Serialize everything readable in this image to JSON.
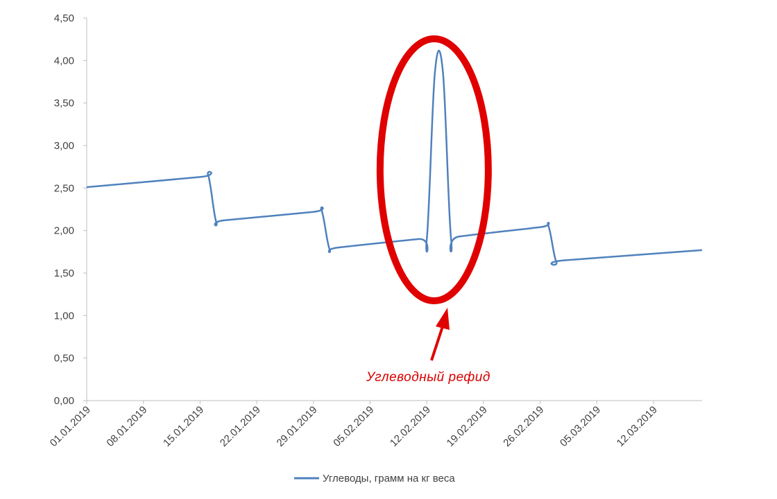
{
  "chart_data": {
    "type": "line",
    "title": "",
    "xlabel": "",
    "ylabel": "",
    "ylim": [
      0,
      4.5
    ],
    "yticks": [
      "0,00",
      "0,50",
      "1,00",
      "1,50",
      "2,00",
      "2,50",
      "3,00",
      "3,50",
      "4,00",
      "4,50"
    ],
    "xlim": [
      "2019-01-01",
      "2019-03-18"
    ],
    "xticks": [
      "01.01.2019",
      "08.01.2019",
      "15.01.2019",
      "22.01.2019",
      "29.01.2019",
      "05.02.2019",
      "12.02.2019",
      "19.02.2019",
      "26.02.2019",
      "05.03.2019",
      "12.03.2019"
    ],
    "grid": false,
    "legend_position": "bottom",
    "line_color": "#4f81bd",
    "annotation_color": "#e00000",
    "series": [
      {
        "name": "Углеводы, грамм на кг веса",
        "points": [
          {
            "x": "2019-01-01",
            "y": 2.51
          },
          {
            "x": "2019-01-15",
            "y": 2.63
          },
          {
            "x": "2019-01-16",
            "y": 2.65
          },
          {
            "x": "2019-01-17",
            "y": 2.1
          },
          {
            "x": "2019-01-18",
            "y": 2.12
          },
          {
            "x": "2019-01-29",
            "y": 2.22
          },
          {
            "x": "2019-01-30",
            "y": 2.24
          },
          {
            "x": "2019-01-31",
            "y": 1.78
          },
          {
            "x": "2019-02-01",
            "y": 1.8
          },
          {
            "x": "2019-02-11",
            "y": 1.9
          },
          {
            "x": "2019-02-12",
            "y": 1.9
          },
          {
            "x": "2019-02-13",
            "y": 3.86
          },
          {
            "x": "2019-02-14",
            "y": 3.86
          },
          {
            "x": "2019-02-15",
            "y": 1.9
          },
          {
            "x": "2019-02-16",
            "y": 1.93
          },
          {
            "x": "2019-02-26",
            "y": 2.04
          },
          {
            "x": "2019-02-27",
            "y": 2.06
          },
          {
            "x": "2019-02-28",
            "y": 1.63
          },
          {
            "x": "2019-03-01",
            "y": 1.65
          },
          {
            "x": "2019-03-18",
            "y": 1.77
          }
        ]
      }
    ],
    "annotations": [
      {
        "text": "Углеводный рефид",
        "target": {
          "x": "2019-02-13",
          "y": 3.86
        },
        "shape": "ellipse-with-arrow"
      }
    ]
  }
}
